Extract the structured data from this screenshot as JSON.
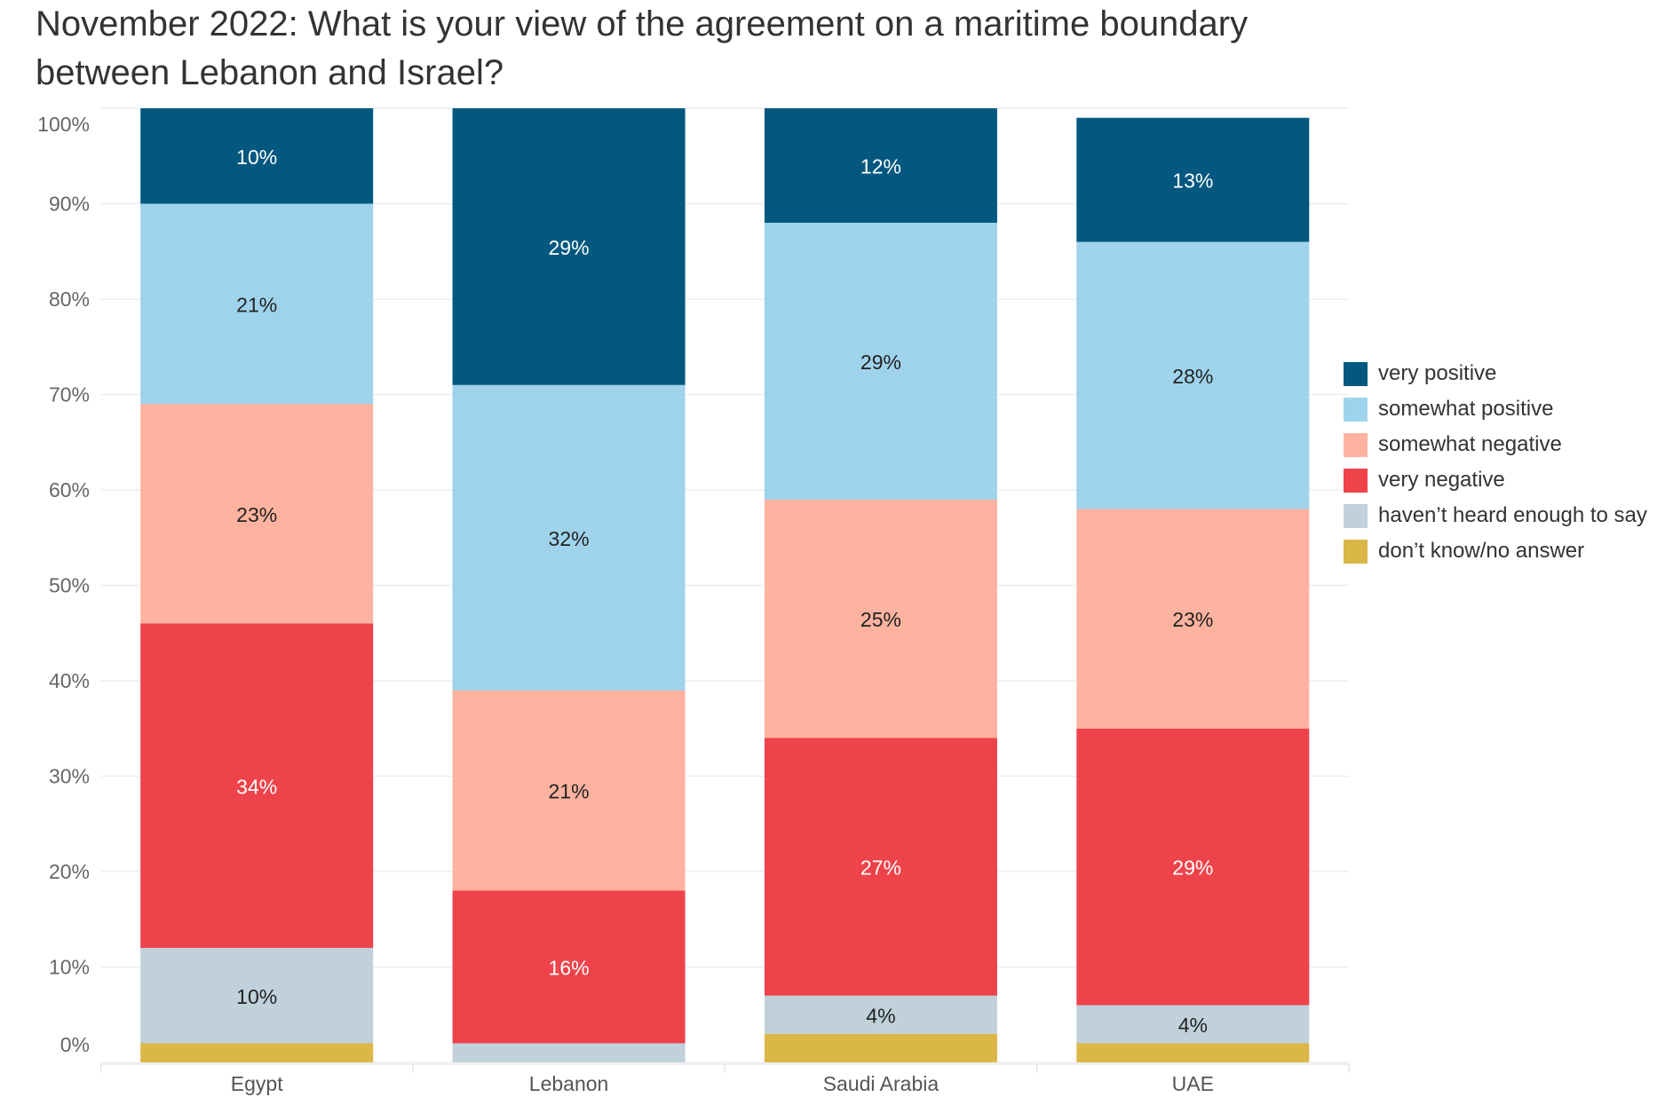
{
  "chart_data": {
    "type": "bar",
    "stacked": true,
    "title": "November 2022: What is your view of the agreement on a maritime boundary between Lebanon and Israel?",
    "categories": [
      "Egypt",
      "Lebanon",
      "Saudi Arabia",
      "UAE"
    ],
    "series": [
      {
        "name": "very positive",
        "color": "#04587f",
        "values": [
          10,
          29,
          12,
          13
        ]
      },
      {
        "name": "somewhat positive",
        "color": "#9fd3ec",
        "values": [
          21,
          32,
          29,
          28
        ]
      },
      {
        "name": "somewhat negative",
        "color": "#fdb3a0",
        "values": [
          23,
          21,
          25,
          23
        ]
      },
      {
        "name": "very negative",
        "color": "#ee434a",
        "values": [
          34,
          16,
          27,
          29
        ]
      },
      {
        "name": "haven’t heard enough to say",
        "color": "#c0d1db",
        "values": [
          10,
          2,
          4,
          4
        ]
      },
      {
        "name": "don’t know/no answer",
        "color": "#dbb748",
        "values": [
          2,
          0,
          3,
          2
        ]
      }
    ],
    "ylim": [
      0,
      100
    ],
    "y_tick_values": [
      0,
      10,
      20,
      30,
      40,
      50,
      60,
      70,
      80,
      90,
      100
    ],
    "y_tick_labels": [
      "0%",
      "10%",
      "20%",
      "30%",
      "40%",
      "50%",
      "60%",
      "70%",
      "80%",
      "90%",
      "100%"
    ],
    "xlabel": "",
    "ylabel": "",
    "grid": true,
    "legend": "right"
  }
}
